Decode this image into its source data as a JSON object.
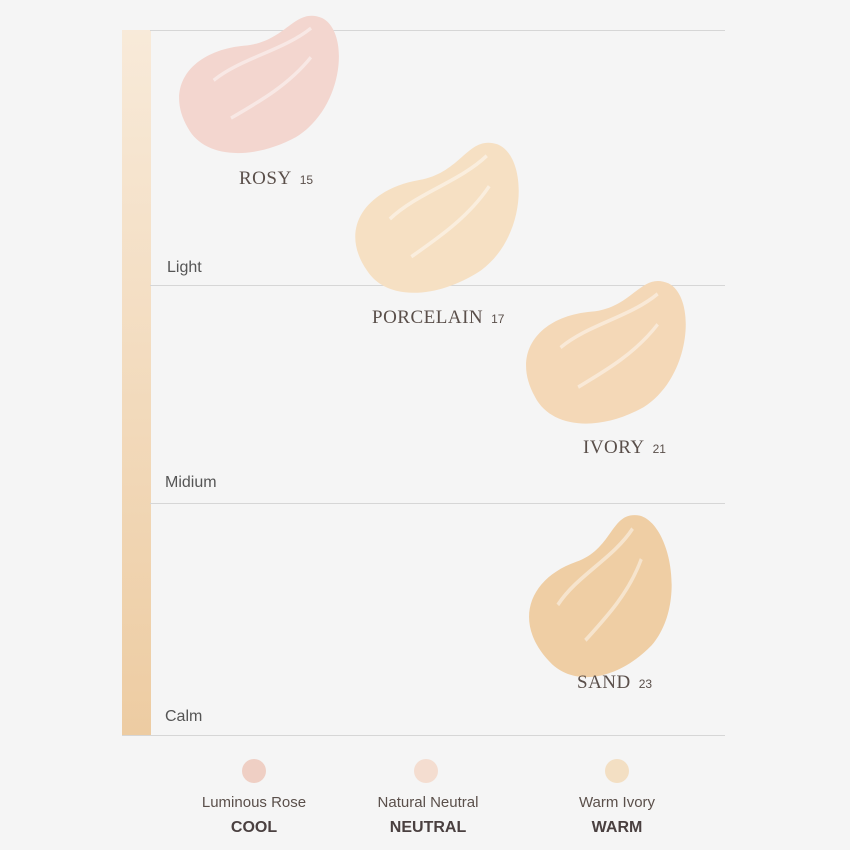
{
  "rows": [
    {
      "label": "Light"
    },
    {
      "label": "Midium"
    },
    {
      "label": "Calm"
    }
  ],
  "shades": [
    {
      "name": "ROSY",
      "number": "15"
    },
    {
      "name": "PORCELAIN",
      "number": "17"
    },
    {
      "name": "IVORY",
      "number": "21"
    },
    {
      "name": "SAND",
      "number": "23"
    }
  ],
  "legend": [
    {
      "label": "Luminous Rose",
      "tone": "COOL"
    },
    {
      "label": "Natural Neutral",
      "tone": "NEUTRAL"
    },
    {
      "label": "Warm Ivory",
      "tone": "WARM"
    }
  ]
}
